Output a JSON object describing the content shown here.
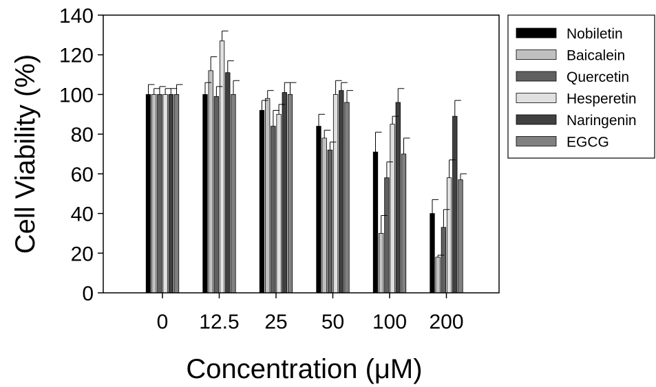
{
  "chart_data": {
    "type": "bar",
    "title": "",
    "xlabel": "Concentration (μM)",
    "ylabel": "Cell Viability (%)",
    "categories": [
      "0",
      "12.5",
      "25",
      "50",
      "100",
      "200"
    ],
    "ylim": [
      0,
      140
    ],
    "yticks": [
      "0",
      "20",
      "40",
      "60",
      "80",
      "100",
      "120",
      "140"
    ],
    "grid": false,
    "legend_position": "top-right",
    "series": [
      {
        "name": "Nobiletin",
        "color": "#000000",
        "values": [
          100,
          100,
          92,
          84,
          71,
          40
        ],
        "errors": [
          5,
          6,
          5,
          6,
          10,
          7
        ]
      },
      {
        "name": "Baicalein",
        "color": "#c0c0c0",
        "values": [
          100,
          112,
          98,
          78,
          30,
          18
        ],
        "errors": [
          3,
          7,
          4,
          4,
          9,
          1
        ]
      },
      {
        "name": "Quercetin",
        "color": "#606060",
        "values": [
          100,
          99,
          84,
          72,
          58,
          33
        ],
        "errors": [
          4,
          5,
          8,
          4,
          8,
          9
        ]
      },
      {
        "name": "Hesperetin",
        "color": "#e0e0e0",
        "values": [
          100,
          127,
          90,
          100,
          85,
          58
        ],
        "errors": [
          3,
          5,
          5,
          7,
          4,
          9
        ]
      },
      {
        "name": "Naringenin",
        "color": "#404040",
        "values": [
          100,
          111,
          101,
          102,
          96,
          89
        ],
        "errors": [
          3,
          6,
          5,
          4,
          7,
          8
        ]
      },
      {
        "name": "EGCG",
        "color": "#808080",
        "values": [
          100,
          100,
          100,
          96,
          70,
          57
        ],
        "errors": [
          5,
          7,
          6,
          6,
          8,
          3
        ]
      }
    ]
  }
}
